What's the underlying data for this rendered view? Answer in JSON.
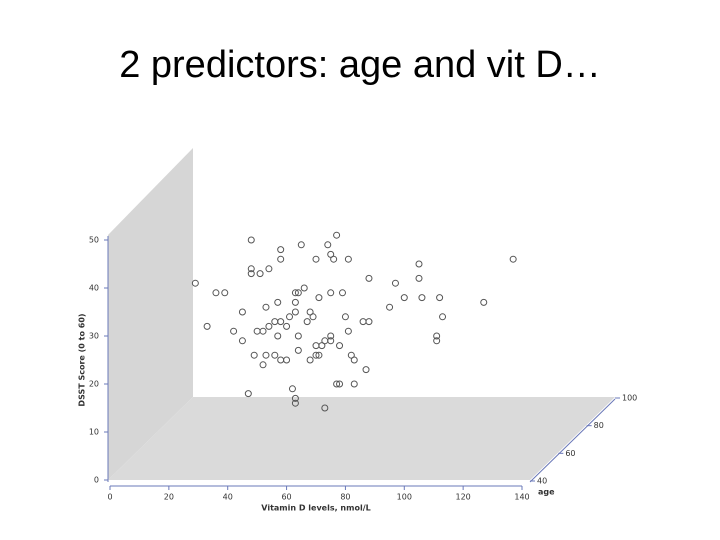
{
  "title": "2 predictors: age and vit D…",
  "chart_data": {
    "type": "scatter",
    "xlabel": "Vitamin D levels, nmol/L",
    "ylabel": "DSST Score (0 to 60)",
    "zlabel": "age",
    "xlim": [
      0,
      140
    ],
    "xticks": [
      0,
      20,
      40,
      60,
      80,
      100,
      120,
      140
    ],
    "ylim": [
      0,
      50
    ],
    "yticks": [
      0,
      10,
      20,
      30,
      40,
      50
    ],
    "zlim": [
      40,
      100
    ],
    "zticks": [
      40,
      60,
      80,
      100
    ],
    "color": "#555555",
    "x": [
      29,
      33,
      36,
      39,
      42,
      45,
      45,
      47,
      48,
      48,
      48,
      49,
      50,
      51,
      52,
      52,
      53,
      53,
      54,
      54,
      56,
      56,
      57,
      57,
      58,
      58,
      58,
      58,
      60,
      60,
      61,
      62,
      63,
      63,
      63,
      64,
      63,
      63,
      64,
      64,
      65,
      66,
      67,
      68,
      68,
      69,
      70,
      70,
      70,
      71,
      71,
      72,
      73,
      73,
      74,
      75,
      75,
      75,
      75,
      76,
      77,
      77,
      78,
      78,
      79,
      80,
      81,
      81,
      82,
      83,
      83,
      86,
      87,
      88,
      88,
      95,
      97,
      100,
      105,
      105,
      106,
      111,
      111,
      112,
      113,
      127,
      137
    ],
    "y": [
      41,
      32,
      39,
      39,
      31,
      29,
      35,
      18,
      44,
      50,
      43,
      26,
      31,
      43,
      24,
      31,
      36,
      26,
      44,
      32,
      33,
      26,
      30,
      37,
      33,
      46,
      48,
      25,
      32,
      25,
      34,
      19,
      39,
      37,
      35,
      27,
      17,
      16,
      30,
      39,
      49,
      40,
      33,
      35,
      25,
      34,
      26,
      28,
      46,
      26,
      38,
      28,
      15,
      29,
      49,
      47,
      30,
      29,
      39,
      46,
      51,
      20,
      28,
      20,
      39,
      34,
      46,
      31,
      26,
      25,
      20,
      33,
      23,
      33,
      42,
      36,
      41,
      38,
      45,
      42,
      38,
      30,
      29,
      38,
      34,
      37,
      46
    ]
  }
}
